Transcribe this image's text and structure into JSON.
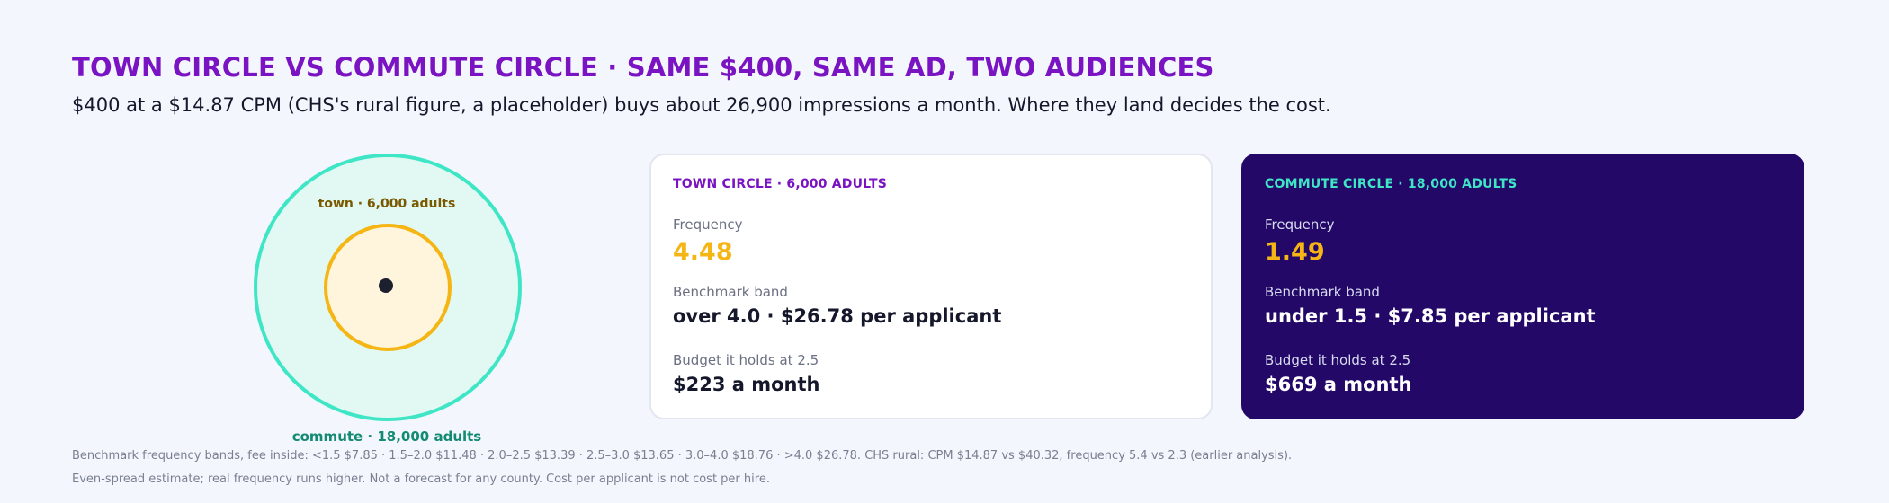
{
  "header": {
    "title": "TOWN CIRCLE VS COMMUTE CIRCLE · SAME $400, SAME AD, TWO AUDIENCES",
    "subtitle": "$400 at a $14.87 CPM (CHS's rural figure, a placeholder) buys about 26,900 impressions a month. Where they land decides the cost."
  },
  "diagram": {
    "town_label": "town · 6,000 adults",
    "commute_label": "commute · 18,000 adults",
    "colors": {
      "town": "#f5b615",
      "commute": "#3ee6c6"
    }
  },
  "cards": [
    {
      "heading": "TOWN CIRCLE · 6,000 ADULTS",
      "frequency_label": "Frequency",
      "frequency": "4.48",
      "band_label": "Benchmark band",
      "band": "over 4.0 · $26.78 per applicant",
      "budget_label": "Budget it holds at 2.5",
      "budget": "$223 a month"
    },
    {
      "heading": "COMMUTE CIRCLE · 18,000 ADULTS",
      "frequency_label": "Frequency",
      "frequency": "1.49",
      "band_label": "Benchmark band",
      "band": "under 1.5 · $7.85 per applicant",
      "budget_label": "Budget it holds at 2.5",
      "budget": "$669 a month"
    }
  ],
  "footnotes": [
    "Benchmark frequency bands, fee inside: <1.5 $7.85 · 1.5–2.0 $11.48 · 2.0–2.5 $13.39 · 2.5–3.0 $13.65 · 3.0–4.0 $18.76 · >4.0 $26.78. CHS rural: CPM $14.87 vs $40.32, frequency 5.4 vs 2.3 (earlier analysis).",
    "Even-spread estimate; real frequency runs higher. Not a forecast for any county. Cost per applicant is not cost per hire."
  ]
}
